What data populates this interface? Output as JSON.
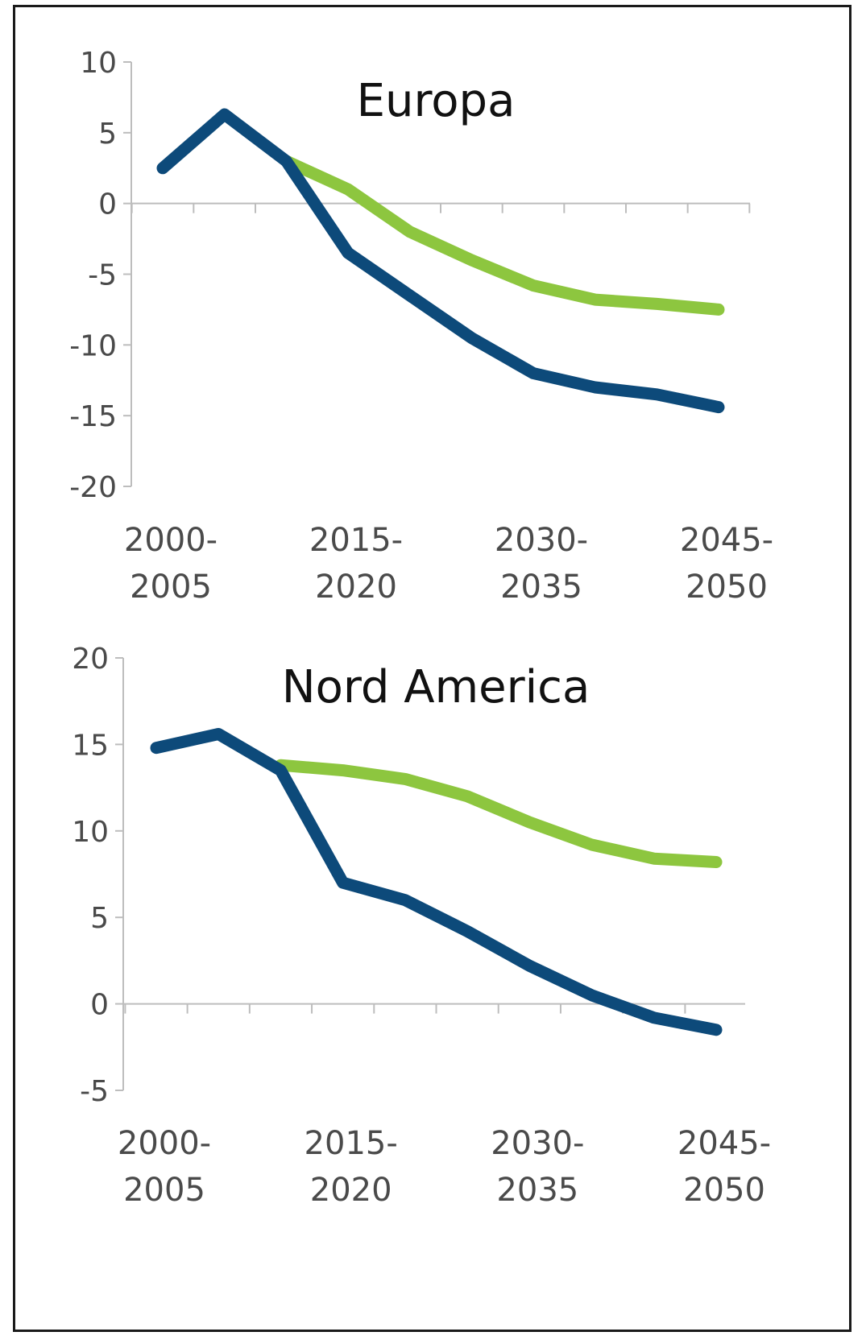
{
  "chart_data": [
    {
      "type": "line",
      "title": "Europa",
      "categories": [
        "2000-2005",
        "2005-2010",
        "2010-2015",
        "2015-2020",
        "2020-2025",
        "2025-2030",
        "2030-2035",
        "2035-2040",
        "2040-2045",
        "2045-2050"
      ],
      "category_labels": [
        {
          "index": 0,
          "lines": [
            "2000-",
            "2005"
          ]
        },
        {
          "index": 3,
          "lines": [
            "2015-",
            "2020"
          ]
        },
        {
          "index": 6,
          "lines": [
            "2030-",
            "2035"
          ]
        },
        {
          "index": 9,
          "lines": [
            "2045-",
            "2050"
          ]
        }
      ],
      "yticks": [
        10,
        5,
        0,
        -5,
        -10,
        -15,
        -20
      ],
      "ylim": [
        -20,
        10
      ],
      "xlabel": "",
      "ylabel": "",
      "grid": false,
      "series": [
        {
          "color": "#8dc63f",
          "values": [
            null,
            null,
            3,
            1,
            -2,
            -4,
            -5.8,
            -6.8,
            -7.1,
            -7.5
          ]
        },
        {
          "color": "#0d4a7a",
          "values": [
            2.5,
            6.3,
            3,
            -3.5,
            -6.5,
            -9.5,
            -12,
            -13,
            -13.5,
            -14.4
          ]
        }
      ]
    },
    {
      "type": "line",
      "title": "Nord America",
      "categories": [
        "2000-2005",
        "2005-2010",
        "2010-2015",
        "2015-2020",
        "2020-2025",
        "2025-2030",
        "2030-2035",
        "2035-2040",
        "2040-2045",
        "2045-2050"
      ],
      "category_labels": [
        {
          "index": 0,
          "lines": [
            "2000-",
            "2005"
          ]
        },
        {
          "index": 3,
          "lines": [
            "2015-",
            "2020"
          ]
        },
        {
          "index": 6,
          "lines": [
            "2030-",
            "2035"
          ]
        },
        {
          "index": 9,
          "lines": [
            "2045-",
            "2050"
          ]
        }
      ],
      "yticks": [
        20,
        15,
        10,
        5,
        0,
        -5
      ],
      "ylim": [
        -5,
        20
      ],
      "xlabel": "",
      "ylabel": "",
      "grid": false,
      "series": [
        {
          "color": "#8dc63f",
          "values": [
            null,
            null,
            13.8,
            13.5,
            13,
            12,
            10.5,
            9.2,
            8.4,
            8.2
          ]
        },
        {
          "color": "#0d4a7a",
          "values": [
            14.8,
            15.6,
            13.5,
            7,
            6,
            4.2,
            2.2,
            0.5,
            -0.8,
            -1.5
          ]
        }
      ]
    }
  ]
}
